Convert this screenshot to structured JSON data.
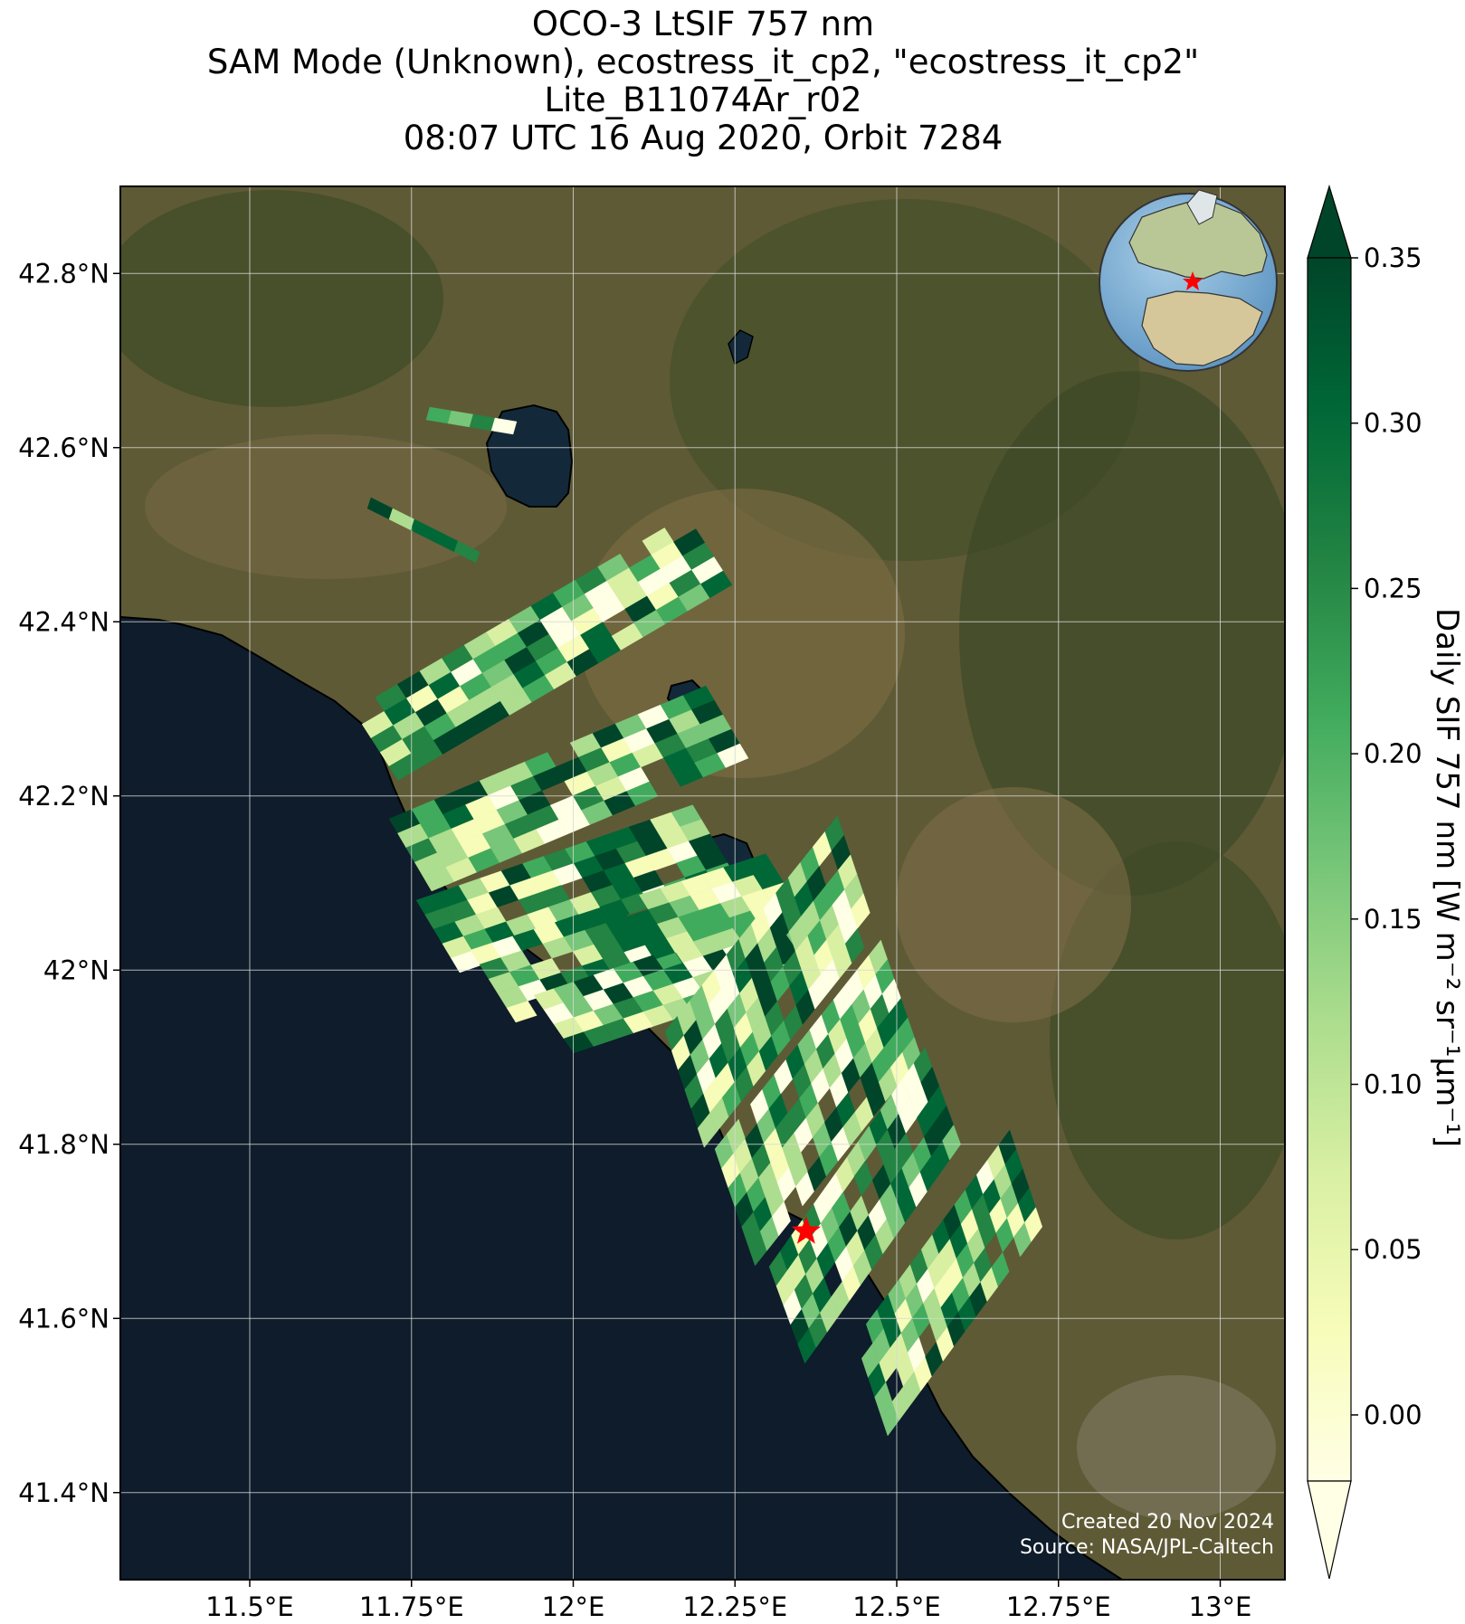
{
  "title": {
    "line1": "OCO-3 LtSIF 757 nm",
    "line2": "SAM Mode (Unknown), ecostress_it_cp2, \"ecostress_it_cp2\"",
    "line3": "Lite_B11074Ar_r02",
    "line4": "08:07 UTC 16 Aug 2020, Orbit 7284"
  },
  "map": {
    "lon_range": [
      11.3,
      13.1
    ],
    "lat_range": [
      41.3,
      42.9
    ],
    "lon_ticks": [
      {
        "value": 11.5,
        "label": "11.5°E"
      },
      {
        "value": 11.75,
        "label": "11.75°E"
      },
      {
        "value": 12.0,
        "label": "12°E"
      },
      {
        "value": 12.25,
        "label": "12.25°E"
      },
      {
        "value": 12.5,
        "label": "12.5°E"
      },
      {
        "value": 12.75,
        "label": "12.75°E"
      },
      {
        "value": 13.0,
        "label": "13°E"
      }
    ],
    "lat_ticks": [
      {
        "value": 42.8,
        "label": "42.8°N"
      },
      {
        "value": 42.6,
        "label": "42.6°N"
      },
      {
        "value": 42.4,
        "label": "42.4°N"
      },
      {
        "value": 42.2,
        "label": "42.2°N"
      },
      {
        "value": 42.0,
        "label": "42°N"
      },
      {
        "value": 41.8,
        "label": "41.8°N"
      },
      {
        "value": 41.6,
        "label": "41.6°N"
      },
      {
        "value": 41.4,
        "label": "41.4°N"
      }
    ],
    "target_marker": {
      "lon": 12.36,
      "lat": 41.7,
      "color": "#ff0000"
    },
    "credit_line1": "Created 20 Nov 2024",
    "credit_line2": "Source: NASA/JPL-Caltech",
    "colors": {
      "sea": "#0e1c2b",
      "land": "#5e5a36",
      "grid": "#d8d8d8"
    }
  },
  "colorbar": {
    "label": "Daily SIF 757 nm [W m⁻² sr⁻¹μm⁻¹]",
    "min": -0.02,
    "max": 0.35,
    "ticks": [
      {
        "value": 0.35,
        "label": "0.35"
      },
      {
        "value": 0.3,
        "label": "0.30"
      },
      {
        "value": 0.25,
        "label": "0.25"
      },
      {
        "value": 0.2,
        "label": "0.20"
      },
      {
        "value": 0.15,
        "label": "0.15"
      },
      {
        "value": 0.1,
        "label": "0.10"
      },
      {
        "value": 0.05,
        "label": "0.05"
      },
      {
        "value": 0.0,
        "label": "0.00"
      }
    ],
    "colormap": [
      "#ffffe5",
      "#f7fcb9",
      "#d9f0a3",
      "#addd8e",
      "#78c679",
      "#41ab5d",
      "#238443",
      "#006837",
      "#004529"
    ]
  }
}
